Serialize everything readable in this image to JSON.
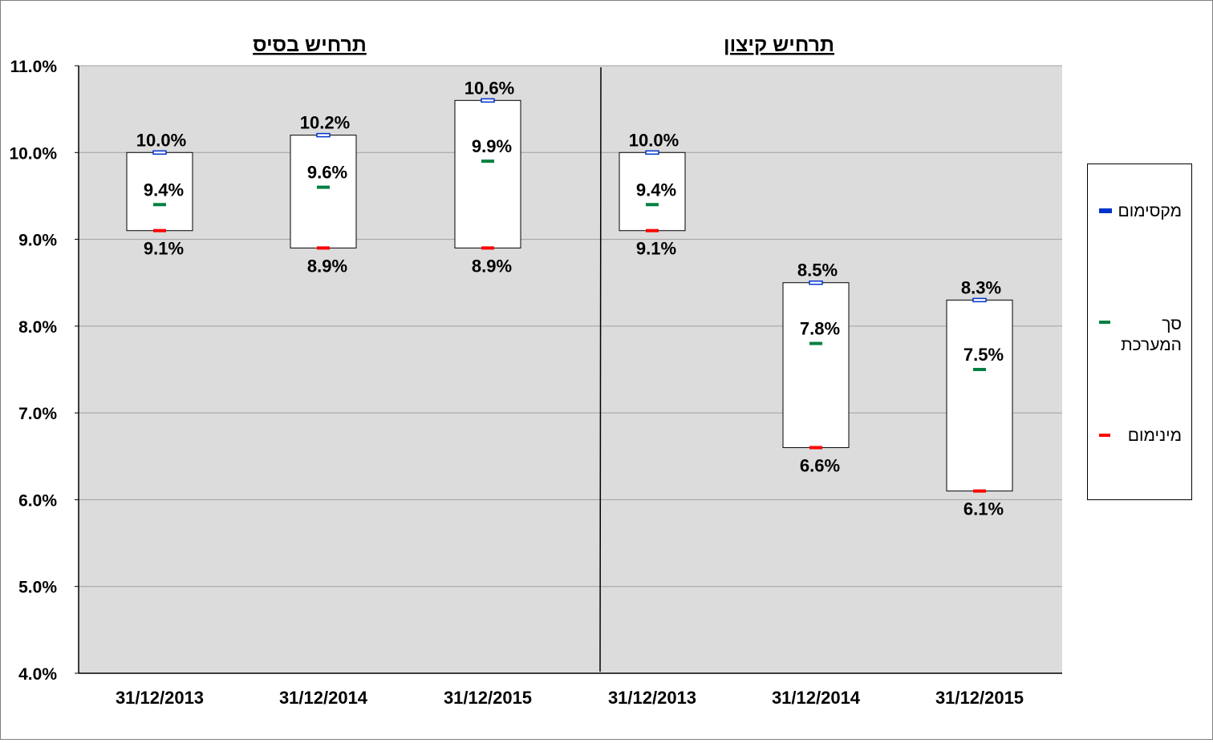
{
  "chart_data": {
    "type": "floating-bar-range",
    "panels": [
      {
        "title": "תרחיש בסיס",
        "categories": [
          "31/12/2013",
          "31/12/2014",
          "31/12/2015"
        ],
        "series": [
          {
            "name": "מקסימום",
            "values": [
              10.0,
              10.2,
              10.6
            ],
            "labels": [
              "10.0%",
              "10.2%",
              "10.6%"
            ]
          },
          {
            "name": "סך המערכת",
            "values": [
              9.4,
              9.6,
              9.9
            ],
            "labels": [
              "9.4%",
              "9.6%",
              "9.9%"
            ]
          },
          {
            "name": "מינימום",
            "values": [
              9.1,
              8.9,
              8.9
            ],
            "labels": [
              "9.1%",
              "8.9%",
              "8.9%"
            ]
          }
        ]
      },
      {
        "title": "תרחיש קיצון",
        "categories": [
          "31/12/2013",
          "31/12/2014",
          "31/12/2015"
        ],
        "series": [
          {
            "name": "מקסימום",
            "values": [
              10.0,
              8.5,
              8.3
            ],
            "labels": [
              "10.0%",
              "8.5%",
              "8.3%"
            ]
          },
          {
            "name": "סך המערכת",
            "values": [
              9.4,
              7.8,
              7.5
            ],
            "labels": [
              "9.4%",
              "7.8%",
              "7.5%"
            ]
          },
          {
            "name": "מינימום",
            "values": [
              9.1,
              6.6,
              6.1
            ],
            "labels": [
              "9.1%",
              "6.6%",
              "6.1%"
            ]
          }
        ]
      }
    ],
    "ylim": [
      4.0,
      11.0
    ],
    "yticks": [
      "4.0%",
      "5.0%",
      "6.0%",
      "7.0%",
      "8.0%",
      "9.0%",
      "10.0%",
      "11.0%"
    ],
    "grid": true,
    "legend_position": "right",
    "colors": {
      "plot_background": "#dcdcdc",
      "max": "#0033cc",
      "total": "#008040",
      "min": "#ff0000",
      "box_fill": "#ffffff",
      "gridline": "#a0a0a0"
    }
  },
  "legend": {
    "items": [
      {
        "key": "max",
        "label": "מקסימום"
      },
      {
        "key": "total",
        "label": "סך המערכת"
      },
      {
        "key": "min",
        "label": "מינימום"
      }
    ]
  }
}
